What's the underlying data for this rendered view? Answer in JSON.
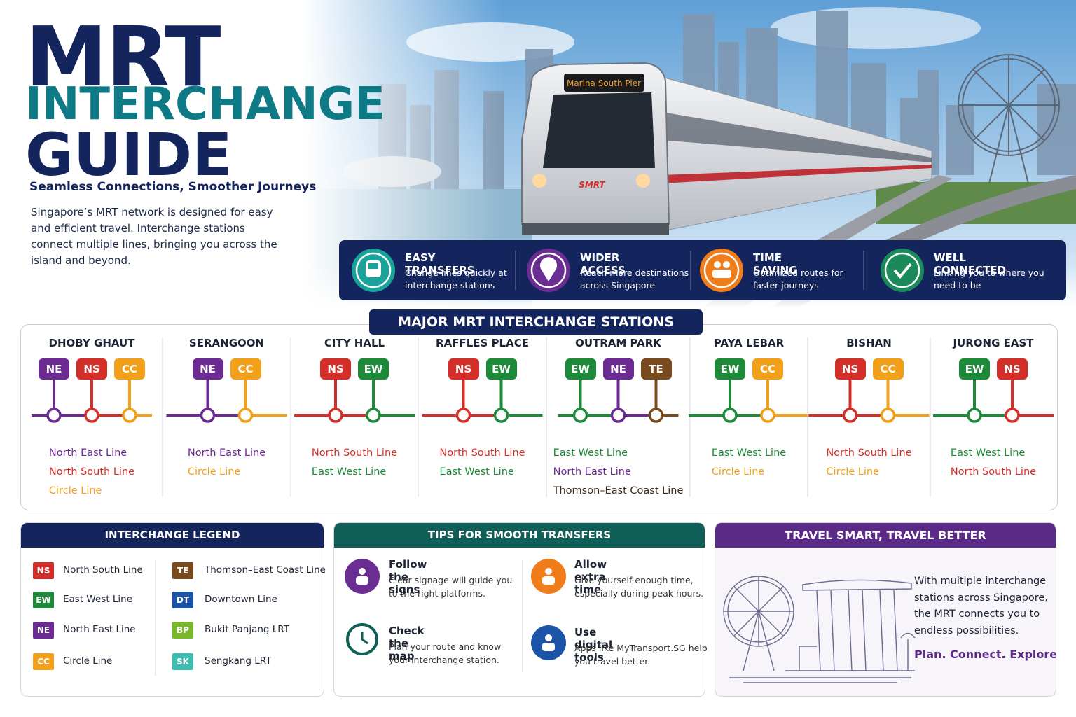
{
  "header": {
    "title_line1": "MRT",
    "title_line2": "INTERCHANGE",
    "title_line3": "GUIDE",
    "tagline": "Seamless Connections, Smoother Journeys",
    "intro": "Singapore’s MRT network is designed for easy and efficient travel. Interchange stations connect multiple lines, bringing you across the island and beyond."
  },
  "hero": {
    "destination_sign": "Marina South Pier",
    "train_logo": "SMRT"
  },
  "benefits": [
    {
      "title": "EASY TRANSFERS",
      "text": "Change lines quickly at interchange stations",
      "color": "#1aa39a"
    },
    {
      "title": "WIDER ACCESS",
      "text": "Reach more destinations across Singapore",
      "color": "#6a2d91"
    },
    {
      "title": "TIME SAVING",
      "text": "Optimized routes for faster journeys",
      "color": "#f07c1a"
    },
    {
      "title": "WELL CONNECTED",
      "text": "Linking you to where you need to be",
      "color": "#1a8a5a"
    }
  ],
  "stations": {
    "title": "MAJOR MRT INTERCHANGE STATIONS",
    "items": [
      {
        "name": "DHOBY GHAUT",
        "lines": [
          {
            "code": "NE",
            "name": "North East Line"
          },
          {
            "code": "NS",
            "name": "North South Line"
          },
          {
            "code": "CC",
            "name": "Circle Line"
          }
        ]
      },
      {
        "name": "SERANGOON",
        "lines": [
          {
            "code": "NE",
            "name": "North East Line"
          },
          {
            "code": "CC",
            "name": "Circle Line"
          }
        ]
      },
      {
        "name": "CITY HALL",
        "lines": [
          {
            "code": "NS",
            "name": "North South Line"
          },
          {
            "code": "EW",
            "name": "East West Line"
          }
        ]
      },
      {
        "name": "RAFFLES PLACE",
        "lines": [
          {
            "code": "NS",
            "name": "North South Line"
          },
          {
            "code": "EW",
            "name": "East West Line"
          }
        ]
      },
      {
        "name": "OUTRAM PARK",
        "lines": [
          {
            "code": "EW",
            "name": "East West Line"
          },
          {
            "code": "NE",
            "name": "North East Line"
          },
          {
            "code": "TE",
            "name": "Thomson–East Coast Line"
          }
        ]
      },
      {
        "name": "PAYA LEBAR",
        "lines": [
          {
            "code": "EW",
            "name": "East West Line"
          },
          {
            "code": "CC",
            "name": "Circle Line"
          }
        ]
      },
      {
        "name": "BISHAN",
        "lines": [
          {
            "code": "NS",
            "name": "North South Line"
          },
          {
            "code": "CC",
            "name": "Circle Line"
          }
        ]
      },
      {
        "name": "JURONG EAST",
        "lines": [
          {
            "code": "EW",
            "name": "East West Line"
          },
          {
            "code": "NS",
            "name": "North South Line"
          }
        ]
      }
    ]
  },
  "legend": {
    "title": "INTERCHANGE LEGEND",
    "items": [
      {
        "code": "NS",
        "name": "North South Line",
        "color": "#d42e29"
      },
      {
        "code": "EW",
        "name": "East West Line",
        "color": "#1d8a3a"
      },
      {
        "code": "NE",
        "name": "North East Line",
        "color": "#6c2a93"
      },
      {
        "code": "CC",
        "name": "Circle Line",
        "color": "#f2a01a"
      },
      {
        "code": "TE",
        "name": "Thomson–East Coast Line",
        "color": "#7a4a1f"
      },
      {
        "code": "DT",
        "name": "Downtown Line",
        "color": "#1c54a8"
      },
      {
        "code": "BP",
        "name": "Bukit Panjang LRT",
        "color": "#7ab82b"
      },
      {
        "code": "SK",
        "name": "Sengkang LRT",
        "color": "#3dbdb0"
      }
    ]
  },
  "tips": {
    "title": "TIPS FOR SMOOTH TRANSFERS",
    "items": [
      {
        "title": "Follow the signs",
        "text": "Clear signage will guide you to the right platforms.",
        "color": "#6a2d91"
      },
      {
        "title": "Allow extra time",
        "text": "Give yourself enough time, especially during peak hours.",
        "color": "#f07c1a"
      },
      {
        "title": "Check the map",
        "text": "Plan your route and know your interchange station.",
        "color": "#0f5e57"
      },
      {
        "title": "Use digital tools",
        "text": "Apps like MyTransport.SG help you travel better.",
        "color": "#1c54a8"
      }
    ]
  },
  "travel": {
    "title": "TRAVEL SMART, TRAVEL BETTER",
    "text": "With multiple interchange stations across Singapore, the MRT connects you to endless possibilities.",
    "slogan": "Plan. Connect. Explore."
  }
}
